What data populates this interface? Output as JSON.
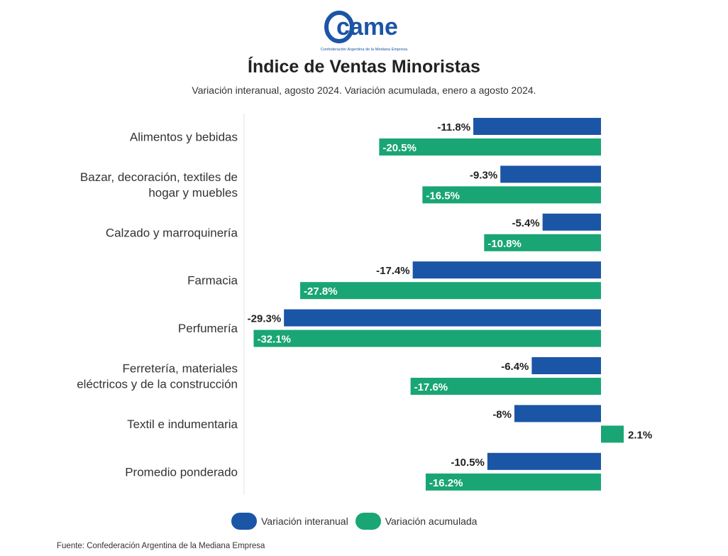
{
  "logo": {
    "text": "came",
    "caption": "Confederación Argentina de la Mediana Empresa"
  },
  "colors": {
    "interanual": "#1b55a6",
    "acumulada": "#1aa574",
    "brand": "#1b55a6"
  },
  "chart_data": {
    "type": "bar",
    "orientation": "horizontal",
    "title": "Índice de Ventas Minoristas",
    "subtitle": "Variación interanual, agosto 2024. Variación acumulada, enero a agosto 2024.",
    "categories": [
      [
        "Alimentos y bebidas"
      ],
      [
        "Bazar, decoración, textiles de",
        "hogar y muebles"
      ],
      [
        "Calzado y marroquinería"
      ],
      [
        "Farmacia"
      ],
      [
        "Perfumería"
      ],
      [
        "Ferretería, materiales",
        "eléctricos y de la construcción"
      ],
      [
        "Textil e indumentaria"
      ],
      [
        "Promedio ponderado"
      ]
    ],
    "series": [
      {
        "name": "Variación interanual",
        "values": [
          -11.8,
          -9.3,
          -5.4,
          -17.4,
          -29.3,
          -6.4,
          -8,
          -10.5
        ],
        "labels": [
          "-11.8%",
          "-9.3%",
          "-5.4%",
          "-17.4%",
          "-29.3%",
          "-6.4%",
          "-8%",
          "-10.5%"
        ]
      },
      {
        "name": "Variación acumulada",
        "values": [
          -20.5,
          -16.5,
          -10.8,
          -27.8,
          -32.1,
          -17.6,
          2.1,
          -16.2
        ],
        "labels": [
          "-20.5%",
          "-16.5%",
          "-10.8%",
          "-27.8%",
          "-32.1%",
          "-17.6%",
          "2.1%",
          "-16.2%"
        ]
      }
    ],
    "xlim": [
      -32.1,
      2.1
    ],
    "legend_position": "bottom",
    "grid": false
  },
  "source": "Fuente: Confederación Argentina de la Mediana Empresa"
}
